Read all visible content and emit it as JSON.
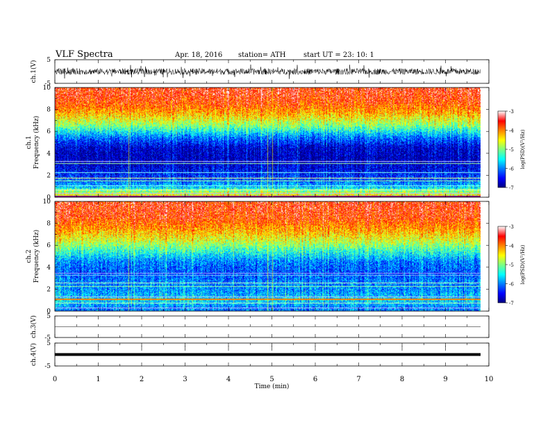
{
  "header": {
    "title": "VLF  Spectra",
    "date": "Apr. 18,  2016",
    "station": "station= ATH",
    "start": "start  UT  =   23: 10: 1"
  },
  "colors": {
    "scale": [
      "#000080",
      "#0000ff",
      "#0080ff",
      "#00ffff",
      "#80ff80",
      "#ffff00",
      "#ff8000",
      "#ff0000",
      "#ffffff"
    ],
    "waveform": "#000000"
  },
  "chart_data": [
    {
      "id": "ch1-waveform",
      "type": "line",
      "ylabel": "ch.1(V)",
      "ylim": [
        -5,
        5
      ],
      "yticks": [
        "5",
        "-5"
      ],
      "xlim": [
        0,
        10
      ],
      "description_level": "noisy waveform around 0 V, amplitude about ±1.5 V"
    },
    {
      "id": "ch1-spectrogram",
      "type": "heatmap",
      "ylabel": "ch.1\nFrequency  (kHz)",
      "ylim": [
        0,
        10
      ],
      "yticks": [
        "0",
        "2",
        "4",
        "6",
        "8",
        "10"
      ],
      "xlim": [
        0,
        10
      ],
      "band_levels_by_freq": [
        {
          "f": 0.3,
          "level": -4.6
        },
        {
          "f": 1.0,
          "level": -5.8
        },
        {
          "f": 1.8,
          "level": -6.3
        },
        {
          "f": 2.6,
          "level": -6.6
        },
        {
          "f": 3.5,
          "level": -6.8
        },
        {
          "f": 4.5,
          "level": -6.7
        },
        {
          "f": 5.5,
          "level": -6.0
        },
        {
          "f": 6.5,
          "level": -5.0
        },
        {
          "f": 7.5,
          "level": -4.3
        },
        {
          "f": 8.5,
          "level": -3.8
        },
        {
          "f": 9.5,
          "level": -3.6
        }
      ],
      "colorbar": {
        "label": "log(PSD)(V²/Hz)",
        "range": [
          -7,
          -3
        ],
        "ticks": [
          "-3",
          "-4",
          "-5",
          "-6",
          "-7"
        ]
      }
    },
    {
      "id": "ch2-spectrogram",
      "type": "heatmap",
      "ylabel": "ch.2\nFrequency  (kHz)",
      "ylim": [
        0,
        10
      ],
      "yticks": [
        "0",
        "2",
        "4",
        "6",
        "8",
        "10"
      ],
      "xlim": [
        0,
        10
      ],
      "band_levels_by_freq": [
        {
          "f": 0.3,
          "level": -6.0
        },
        {
          "f": 1.0,
          "level": -5.6
        },
        {
          "f": 1.8,
          "level": -5.9
        },
        {
          "f": 2.6,
          "level": -6.0
        },
        {
          "f": 3.5,
          "level": -6.2
        },
        {
          "f": 4.5,
          "level": -6.0
        },
        {
          "f": 5.5,
          "level": -5.3
        },
        {
          "f": 6.5,
          "level": -4.6
        },
        {
          "f": 7.5,
          "level": -4.1
        },
        {
          "f": 8.5,
          "level": -3.7
        },
        {
          "f": 9.5,
          "level": -3.6
        }
      ],
      "colorbar": {
        "label": "log(PSD)(V²/Hz)",
        "range": [
          -7,
          -3
        ],
        "ticks": [
          "-3",
          "-4",
          "-5",
          "-6",
          "-7"
        ]
      }
    },
    {
      "id": "ch3-waveform",
      "type": "line",
      "ylabel": "ch.3(V)",
      "ylim": [
        -5,
        5
      ],
      "yticks": [
        "5",
        "-5"
      ],
      "xlim": [
        0,
        10
      ],
      "level": 0
    },
    {
      "id": "ch4-waveform",
      "type": "line",
      "ylabel": "ch.4(V)",
      "ylim": [
        -5,
        5
      ],
      "yticks": [
        "5",
        "-5"
      ],
      "xlim": [
        0,
        10
      ],
      "xlabel": "Time  (min)",
      "xticks": [
        "0",
        "1",
        "2",
        "3",
        "4",
        "5",
        "6",
        "7",
        "8",
        "9",
        "10"
      ],
      "level": 0
    }
  ]
}
